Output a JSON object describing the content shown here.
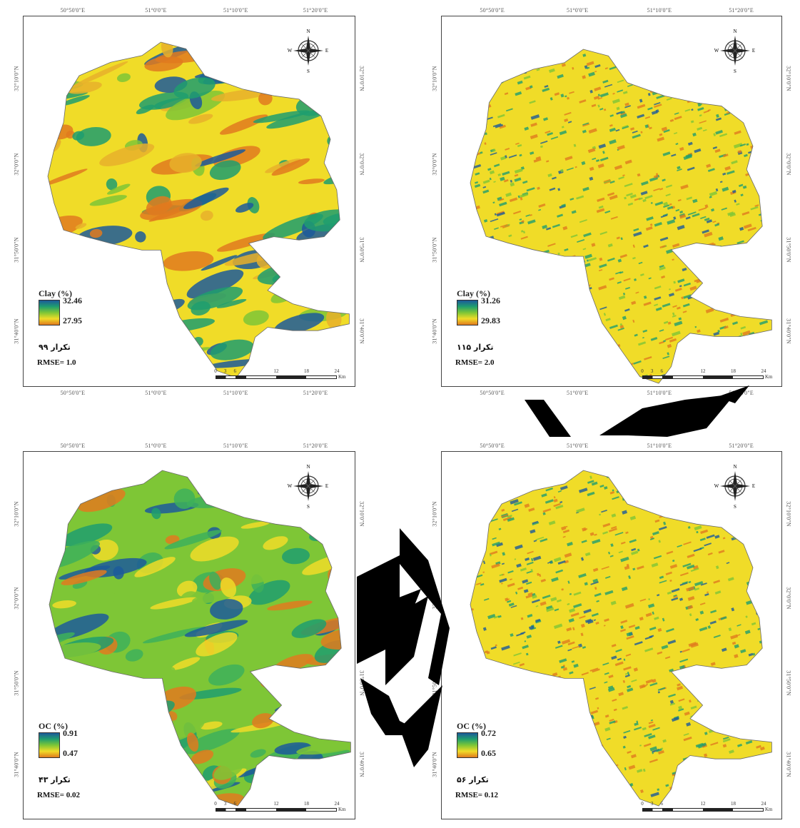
{
  "panels": [
    {
      "id": "clay-99",
      "lon_top": [
        "50°50'0\"E",
        "51°0'0\"E",
        "51°10'0\"E",
        "51°20'0\"E"
      ],
      "lon_bottom": [
        "50°50'0\"E",
        "51°0'0\"E",
        "51°10'0\"E",
        "51°20'0\"E"
      ],
      "lat_left": [
        "32°10'0\"N",
        "32°0'0\"N",
        "31°50'0\"N",
        "31°40'0\"N"
      ],
      "lat_right": [
        "32°10'0\"N",
        "32°0'0\"N",
        "31°50'0\"N",
        "31°40'0\"N"
      ],
      "legend_title": "Clay (%)",
      "legend_max": "32.46",
      "legend_min": "27.95",
      "iteration": "تکرار ۹۹",
      "rmse": "RMSE= 1.0",
      "style": "smooth-warm"
    },
    {
      "id": "clay-115",
      "lon_top": [
        "50°50'0\"E",
        "51°0'0\"E",
        "51°10'0\"E",
        "51°20'0\"E"
      ],
      "lon_bottom": [
        "50°50'0\"E",
        "51°0'0\"E",
        "51°10'0\"E",
        "51°20'0\"E"
      ],
      "lat_left": [
        "32°10'0\"N",
        "32°0'0\"N",
        "31°50'0\"N",
        "31°40'0\"N"
      ],
      "lat_right": [
        "32°10'0\"N",
        "32°0'0\"N",
        "31°50'0\"N",
        "31°40'0\"N"
      ],
      "legend_title": "Clay (%)",
      "legend_max": "31.26",
      "legend_min": "29.83",
      "iteration": "تکرار ۱۱۵",
      "rmse": "RMSE= 2.0",
      "style": "speckled"
    },
    {
      "id": "oc-43",
      "lon_top": [
        "50°50'0\"E",
        "51°0'0\"E",
        "51°10'0\"E",
        "51°20'0\"E"
      ],
      "lon_bottom": [],
      "lat_left": [
        "32°10'0\"N",
        "32°0'0\"N",
        "31°50'0\"N",
        "31°40'0\"N"
      ],
      "lat_right": [
        "32°10'0\"N",
        "32°0'0\"N",
        "31°50'0\"N",
        "31°40'0\"N"
      ],
      "legend_title": "OC (%)",
      "legend_max": "0.91",
      "legend_min": "0.47",
      "iteration": "تکرار ۴۳",
      "rmse": "RMSE= 0.02",
      "style": "smooth-cool"
    },
    {
      "id": "oc-56",
      "lon_top": [
        "50°50'0\"E",
        "51°0'0\"E",
        "51°10'0\"E",
        "51°20'0\"E"
      ],
      "lon_bottom": [],
      "lat_left": [
        "32°10'0\"N",
        "32°0'0\"N",
        "31°50'0\"N",
        "31°40'0\"N"
      ],
      "lat_right": [
        "32°10'0\"N",
        "32°0'0\"N",
        "31°50'0\"N",
        "31°40'0\"N"
      ],
      "legend_title": "OC (%)",
      "legend_max": "0.72",
      "legend_min": "0.65",
      "iteration": "تکرار ۵۶",
      "rmse": "RMSE= 0.12",
      "style": "speckled"
    }
  ],
  "scale_bar": {
    "ticks": [
      "0",
      "3",
      "6",
      "12",
      "18",
      "24"
    ],
    "unit": "Km"
  },
  "compass": {
    "n": "N",
    "s": "S",
    "e": "E",
    "w": "W"
  },
  "colors": {
    "high": "#1c5a9a",
    "mid_high": "#1f9e6e",
    "mid": "#7ec636",
    "mid_low": "#f0dc28",
    "low": "#e07a1e",
    "frame": "#444444"
  }
}
